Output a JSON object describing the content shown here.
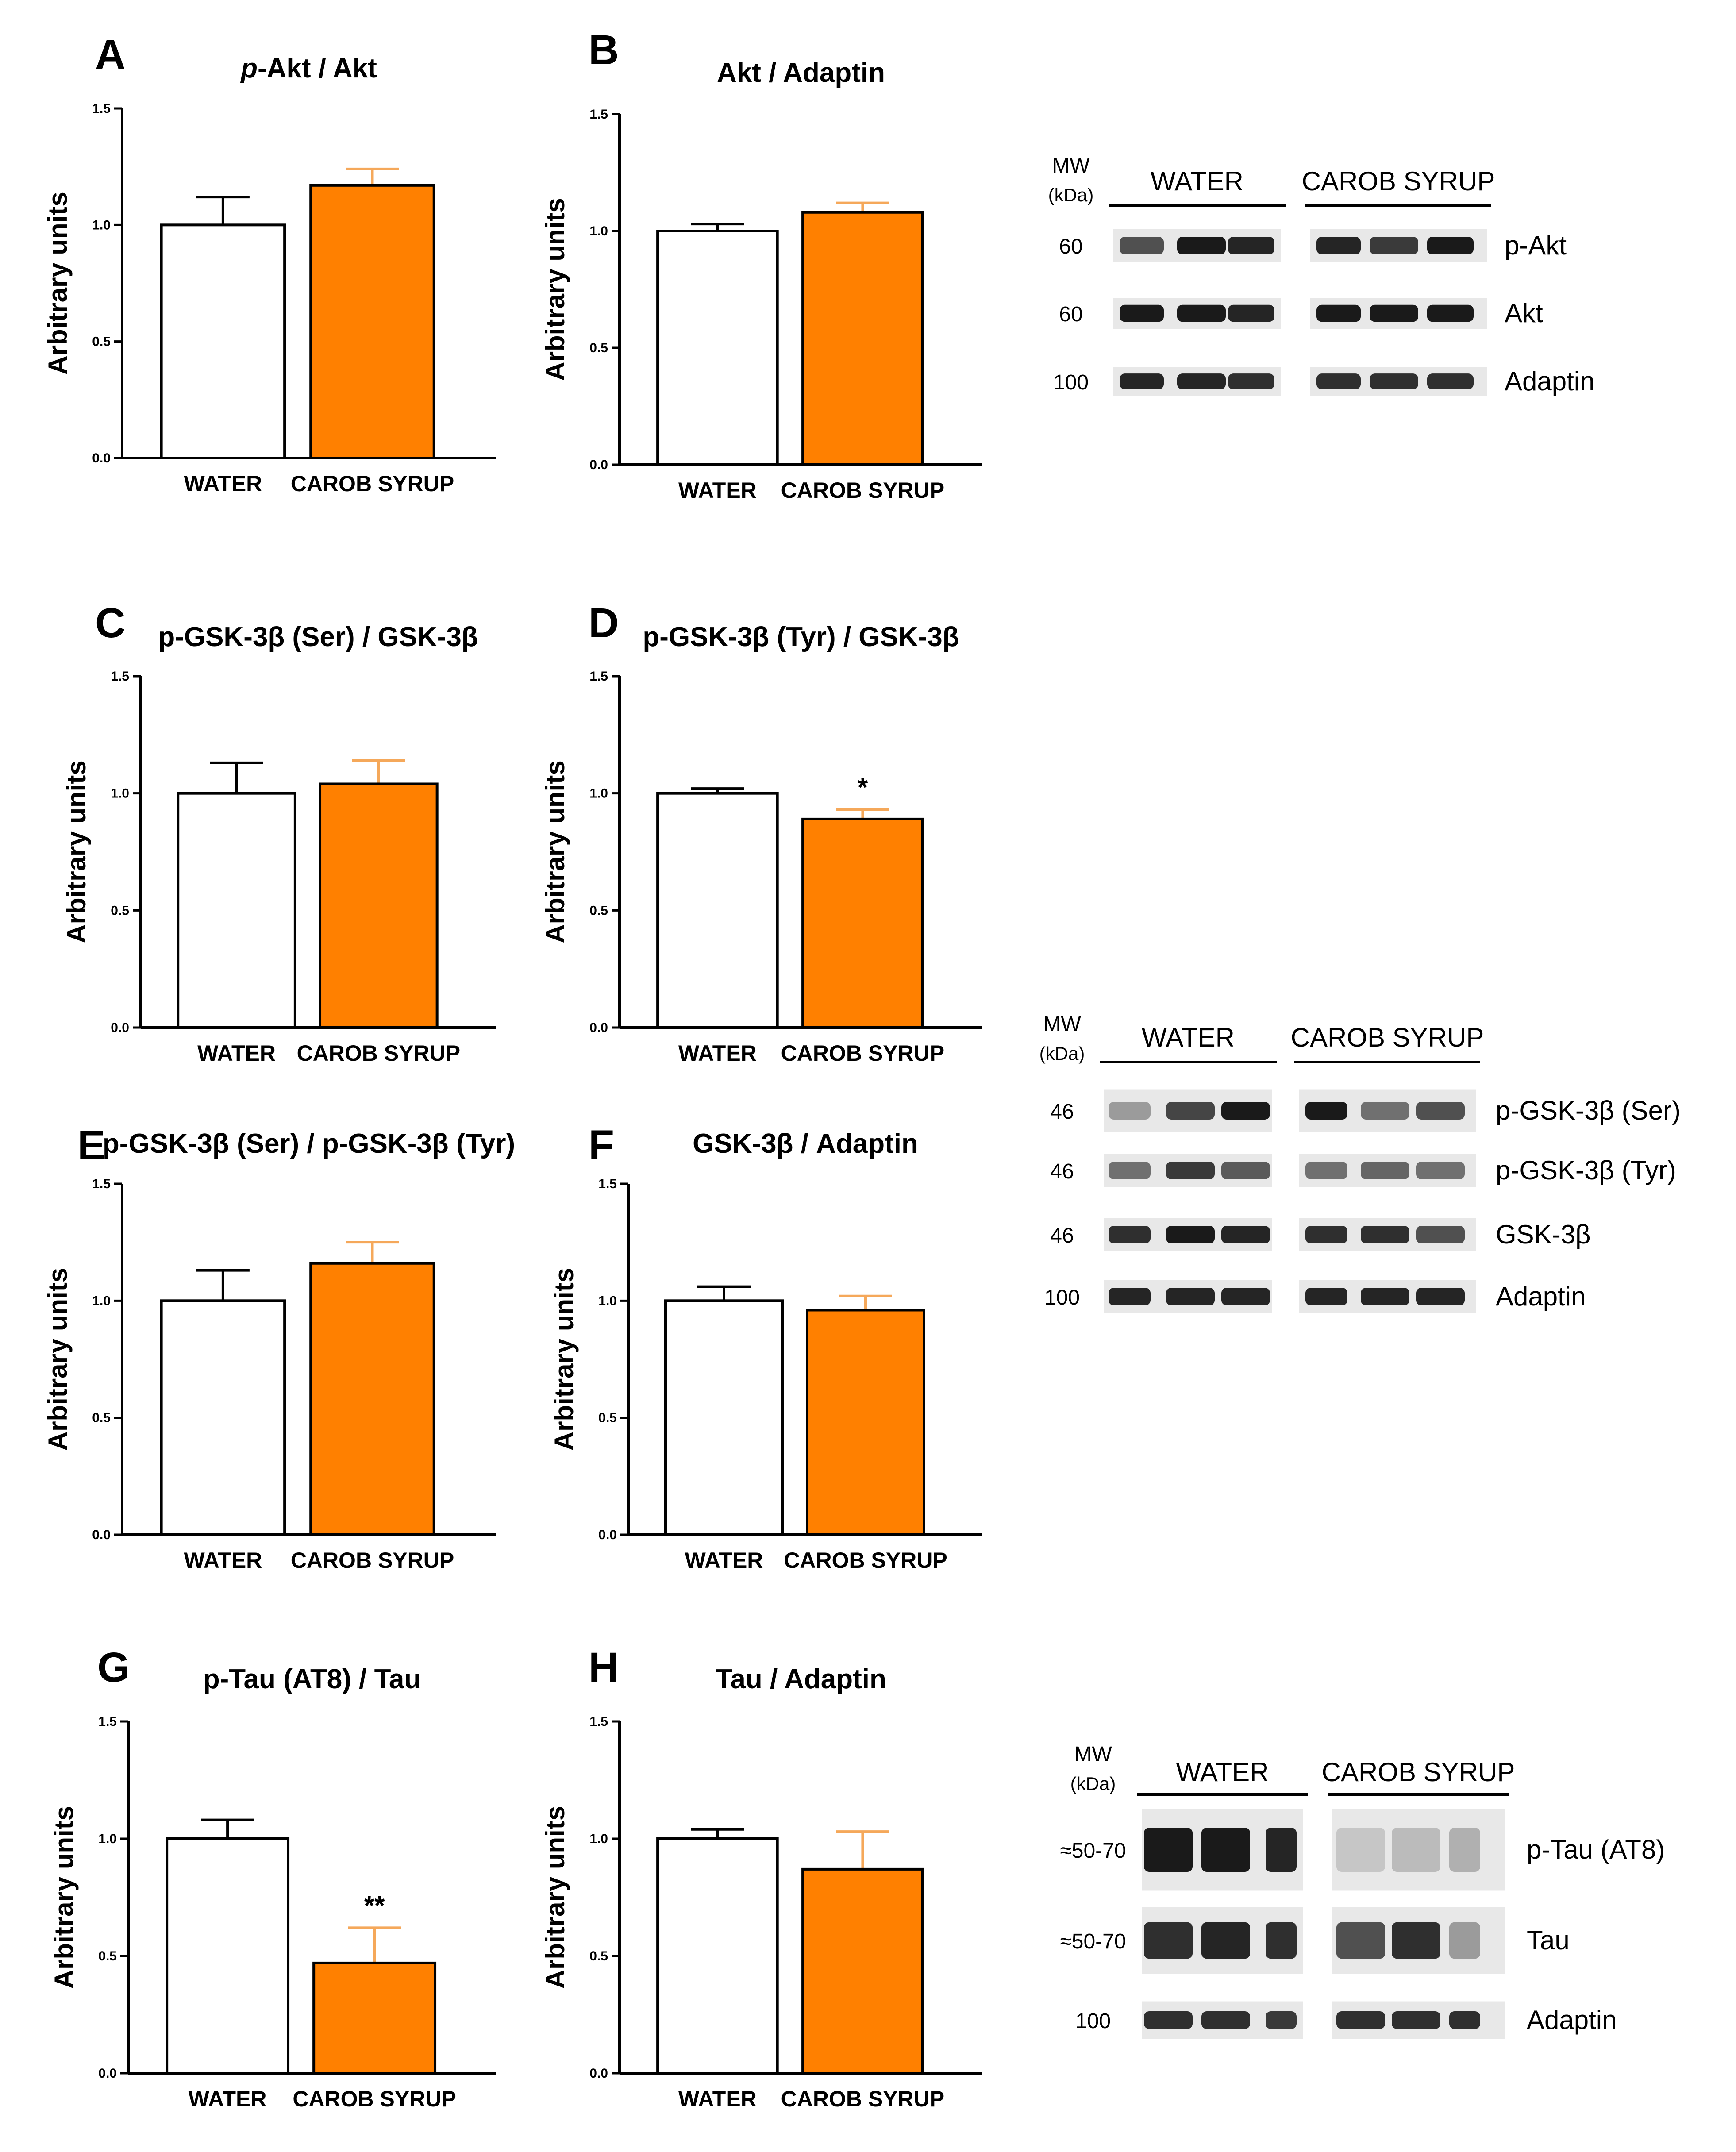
{
  "colors": {
    "water": "#ffffff",
    "carob": "#ff8000",
    "carob_error": "#f5a85a",
    "axis": "#000000",
    "band": "#111111"
  },
  "chart_data": [
    {
      "id": "A",
      "type": "bar",
      "title": "p-Akt / Akt",
      "title_italic_prefix": "p",
      "ylabel": "Arbitrary units",
      "ylim": [
        0,
        1.5
      ],
      "yticks": [
        "0.0",
        "0.5",
        "1.0",
        "1.5"
      ],
      "categories": [
        "WATER",
        "CAROB SYRUP"
      ],
      "values": [
        1.0,
        1.17
      ],
      "errors": [
        0.12,
        0.07
      ],
      "annotations": [
        "",
        ""
      ]
    },
    {
      "id": "B",
      "type": "bar",
      "title": "Akt / Adaptin",
      "ylabel": "Arbitrary units",
      "ylim": [
        0,
        1.5
      ],
      "yticks": [
        "0.0",
        "0.5",
        "1.0",
        "1.5"
      ],
      "categories": [
        "WATER",
        "CAROB SYRUP"
      ],
      "values": [
        1.0,
        1.08
      ],
      "errors": [
        0.03,
        0.04
      ],
      "annotations": [
        "",
        ""
      ]
    },
    {
      "id": "C",
      "type": "bar",
      "title": "p-GSK-3β (Ser) / GSK-3β",
      "ylabel": "Arbitrary units",
      "ylim": [
        0,
        1.5
      ],
      "yticks": [
        "0.0",
        "0.5",
        "1.0",
        "1.5"
      ],
      "categories": [
        "WATER",
        "CAROB SYRUP"
      ],
      "values": [
        1.0,
        1.04
      ],
      "errors": [
        0.13,
        0.1
      ],
      "annotations": [
        "",
        ""
      ]
    },
    {
      "id": "D",
      "type": "bar",
      "title": "p-GSK-3β (Tyr) / GSK-3β",
      "ylabel": "Arbitrary units",
      "ylim": [
        0,
        1.5
      ],
      "yticks": [
        "0.0",
        "0.5",
        "1.0",
        "1.5"
      ],
      "categories": [
        "WATER",
        "CAROB SYRUP"
      ],
      "values": [
        1.0,
        0.89
      ],
      "errors": [
        0.02,
        0.04
      ],
      "annotations": [
        "",
        "*"
      ]
    },
    {
      "id": "E",
      "type": "bar",
      "title": "p-GSK-3β (Ser) / p-GSK-3β (Tyr)",
      "ylabel": "Arbitrary units",
      "ylim": [
        0,
        1.5
      ],
      "yticks": [
        "0.0",
        "0.5",
        "1.0",
        "1.5"
      ],
      "categories": [
        "WATER",
        "CAROB SYRUP"
      ],
      "values": [
        1.0,
        1.16
      ],
      "errors": [
        0.13,
        0.09
      ],
      "annotations": [
        "",
        ""
      ]
    },
    {
      "id": "F",
      "type": "bar",
      "title": "GSK-3β / Adaptin",
      "ylabel": "Arbitrary units",
      "ylim": [
        0,
        1.5
      ],
      "yticks": [
        "0.0",
        "0.5",
        "1.0",
        "1.5"
      ],
      "categories": [
        "WATER",
        "CAROB SYRUP"
      ],
      "values": [
        1.0,
        0.96
      ],
      "errors": [
        0.06,
        0.06
      ],
      "annotations": [
        "",
        ""
      ]
    },
    {
      "id": "G",
      "type": "bar",
      "title": "p-Tau (AT8) / Tau",
      "ylabel": "Arbitrary units",
      "ylim": [
        0,
        1.5
      ],
      "yticks": [
        "0.0",
        "0.5",
        "1.0",
        "1.5"
      ],
      "categories": [
        "WATER",
        "CAROB SYRUP"
      ],
      "values": [
        1.0,
        0.47
      ],
      "errors": [
        0.08,
        0.15
      ],
      "annotations": [
        "",
        "**"
      ]
    },
    {
      "id": "H",
      "type": "bar",
      "title": "Tau / Adaptin",
      "ylabel": "Arbitrary units",
      "ylim": [
        0,
        1.5
      ],
      "yticks": [
        "0.0",
        "0.5",
        "1.0",
        "1.5"
      ],
      "categories": [
        "WATER",
        "CAROB SYRUP"
      ],
      "values": [
        1.0,
        0.87
      ],
      "errors": [
        0.04,
        0.16
      ],
      "annotations": [
        "",
        ""
      ]
    }
  ],
  "blots": [
    {
      "id": "blot1",
      "mw_label": "MW",
      "kda_label": "(kDa)",
      "group1": "WATER",
      "group2": "CAROB SYRUP",
      "rows": [
        {
          "mw": "60",
          "label": "p-Akt"
        },
        {
          "mw": "60",
          "label": "Akt"
        },
        {
          "mw": "100",
          "label": "Adaptin"
        }
      ]
    },
    {
      "id": "blot2",
      "mw_label": "MW",
      "kda_label": "(kDa)",
      "group1": "WATER",
      "group2": "CAROB SYRUP",
      "rows": [
        {
          "mw": "46",
          "label": "p-GSK-3β (Ser)"
        },
        {
          "mw": "46",
          "label": "p-GSK-3β (Tyr)"
        },
        {
          "mw": "46",
          "label": "GSK-3β"
        },
        {
          "mw": "100",
          "label": "Adaptin"
        }
      ]
    },
    {
      "id": "blot3",
      "mw_label": "MW",
      "kda_label": "(kDa)",
      "group1": "WATER",
      "group2": "CAROB SYRUP",
      "rows": [
        {
          "mw": "≈50-70",
          "label": "p-Tau (AT8)"
        },
        {
          "mw": "≈50-70",
          "label": "Tau"
        },
        {
          "mw": "100",
          "label": "Adaptin"
        }
      ]
    }
  ]
}
